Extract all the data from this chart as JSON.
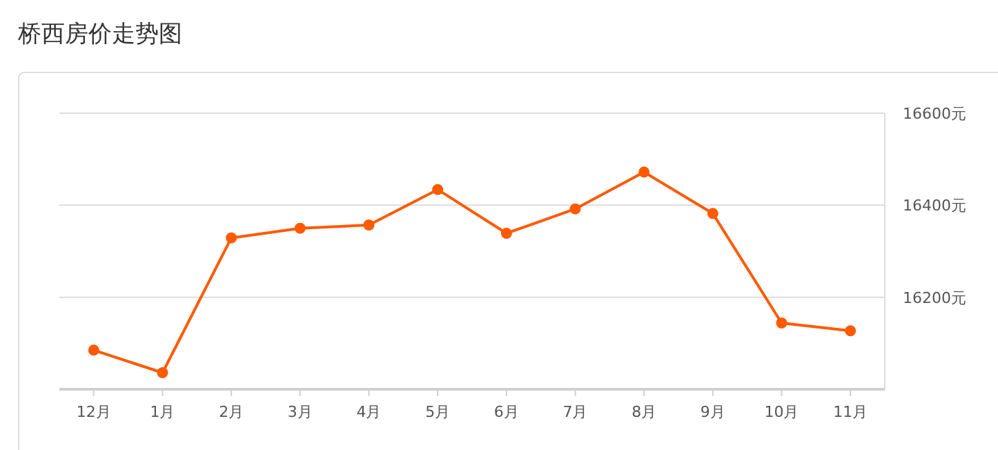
{
  "chart_data": {
    "type": "line",
    "title": "桥西房价走势图",
    "categories": [
      "12月",
      "1月",
      "2月",
      "3月",
      "4月",
      "5月",
      "6月",
      "7月",
      "8月",
      "9月",
      "10月",
      "11月"
    ],
    "series": [
      {
        "color": "#ff5a00",
        "values": [
          16085,
          16036,
          16329,
          16350,
          16357,
          16434,
          16339,
          16392,
          16472,
          16382,
          16144,
          16127
        ]
      }
    ],
    "ylim": [
      16000,
      16600
    ],
    "yticks": [
      {
        "value": 16200,
        "label": "16200元"
      },
      {
        "value": 16400,
        "label": "16400元"
      },
      {
        "value": 16600,
        "label": "16600元"
      }
    ],
    "grid": "y",
    "marker": "circle",
    "line_style": "solid"
  }
}
